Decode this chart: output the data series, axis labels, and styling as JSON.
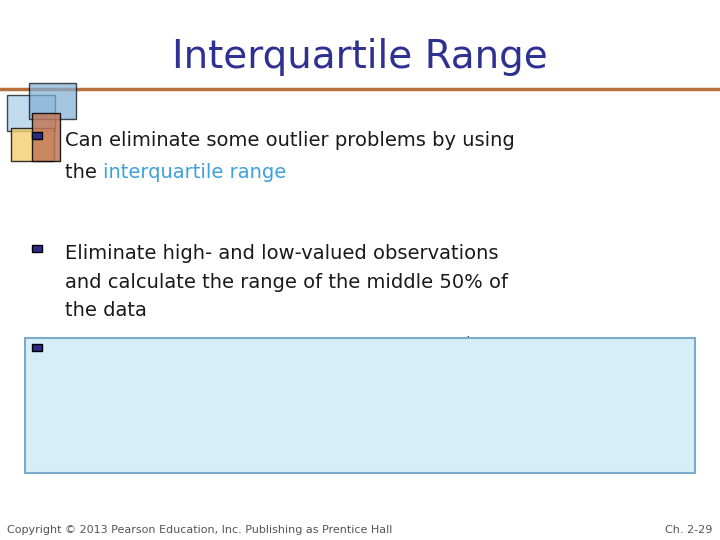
{
  "title": "Interquartile Range",
  "title_color": "#2E3191",
  "title_fontsize": 28,
  "bg_color": "#FFFFFF",
  "bullet_color": "#2B2B8C",
  "text_color": "#1A1A1A",
  "highlight_color": "#3EA0DC",
  "box_bg_color": "#D6EEF8",
  "box_border_color": "#7AABCB",
  "footer_left": "Copyright © 2013 Pearson Education, Inc. Publishing as Prentice Hall",
  "footer_right": "Ch. 2-29",
  "footer_color": "#555555",
  "footer_fontsize": 8,
  "line_color": "#B87040",
  "body_fontsize": 14,
  "bullet3_fontsize": 14
}
